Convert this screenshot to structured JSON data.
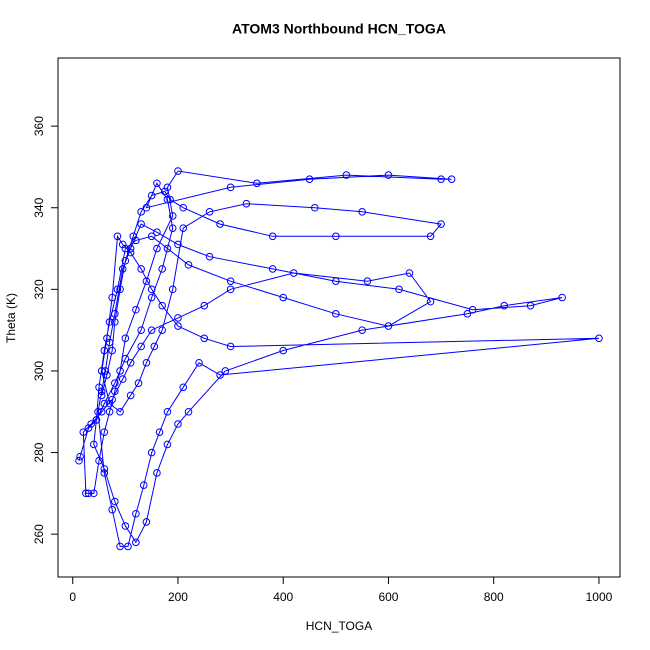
{
  "chart_data": {
    "type": "line",
    "title": "ATOM3 Northbound HCN_TOGA",
    "x_label": "HCN_TOGA",
    "y_label": "Theta (K)",
    "xlim": [
      -28,
      1040
    ],
    "ylim": [
      249.5,
      376.7
    ],
    "xticks": [
      0,
      200,
      400,
      600,
      800,
      1000
    ],
    "yticks": [
      260,
      280,
      300,
      320,
      340,
      360
    ],
    "series": [
      {
        "color": "#0000ff",
        "x": [
          12,
          14,
          30,
          45,
          60,
          80,
          100,
          130,
          150,
          170,
          190,
          180,
          160,
          140,
          300,
          450,
          600,
          720,
          700,
          520,
          350,
          200,
          180,
          190,
          160,
          140,
          120,
          100,
          90,
          80,
          70,
          60,
          50,
          40,
          30,
          25,
          20,
          35,
          55,
          75,
          95,
          110,
          130,
          150,
          200,
          250,
          300,
          420,
          560,
          640,
          680,
          600,
          500,
          400,
          300,
          220,
          180,
          150,
          120,
          100,
          85,
          70,
          60,
          50,
          45,
          40,
          60,
          80,
          100,
          120,
          140,
          160,
          180,
          200,
          220,
          290,
          400,
          550,
          750,
          820,
          930,
          870,
          760,
          620,
          500,
          380,
          260,
          200,
          160,
          130,
          110,
          95,
          80,
          70,
          62,
          55,
          48,
          60,
          75,
          90,
          105,
          120,
          135,
          150,
          165,
          180,
          210,
          240,
          280,
          1000,
          300,
          250,
          200,
          170,
          150,
          130,
          110,
          95,
          85,
          75,
          65,
          55,
          70,
          90,
          110,
          125,
          140,
          155,
          170,
          190,
          210,
          260,
          330,
          460,
          550,
          700,
          680,
          500,
          380,
          280,
          210,
          185,
          175,
          150,
          130,
          115,
          100,
          90,
          80,
          75,
          65,
          55
        ],
        "values": [
          278,
          279,
          286,
          288,
          292,
          297,
          303,
          310,
          318,
          325,
          335,
          342,
          346,
          340,
          345,
          347,
          348,
          347,
          347,
          348,
          346,
          349,
          345,
          338,
          330,
          322,
          315,
          308,
          300,
          295,
          290,
          285,
          278,
          270,
          270,
          270,
          285,
          287,
          290,
          293,
          298,
          302,
          306,
          310,
          313,
          316,
          320,
          324,
          322,
          324,
          317,
          311,
          314,
          318,
          322,
          326,
          330,
          333,
          332,
          330,
          320,
          312,
          305,
          296,
          288,
          282,
          276,
          268,
          262,
          258,
          263,
          275,
          282,
          287,
          290,
          300,
          305,
          310,
          314,
          316,
          318,
          316,
          315,
          320,
          322,
          325,
          328,
          331,
          334,
          336,
          330,
          325,
          314,
          307,
          300,
          295,
          290,
          275,
          266,
          257,
          257,
          265,
          272,
          280,
          285,
          290,
          296,
          302,
          299,
          308,
          306,
          308,
          311,
          316,
          320,
          325,
          329,
          331,
          333,
          318,
          308,
          300,
          292,
          290,
          294,
          297,
          302,
          306,
          310,
          320,
          335,
          339,
          341,
          340,
          339,
          336,
          333,
          333,
          333,
          336,
          340,
          342,
          344,
          343,
          339,
          333,
          327,
          320,
          312,
          305,
          299,
          294
        ]
      }
    ]
  }
}
